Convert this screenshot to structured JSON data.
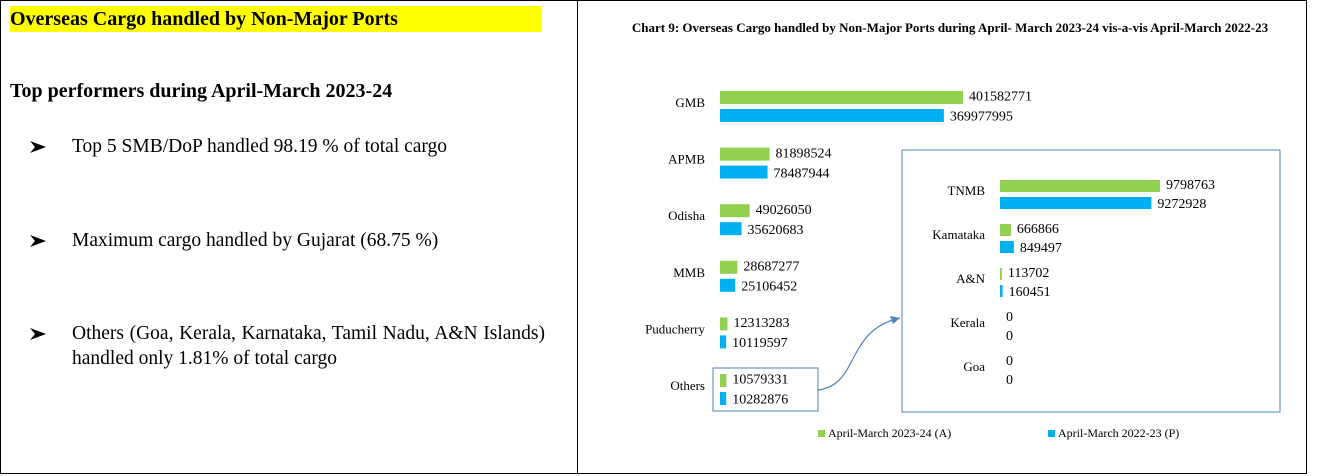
{
  "document": {
    "heading": "Overseas Cargo handled by Non-Major Ports",
    "subheading": "Top performers during April-March 2023-24",
    "bullets": [
      "Top 5 SMB/DoP handled 98.19 % of total cargo",
      "Maximum cargo handled by Gujarat (68.75 %)",
      "Others (Goa, Kerala, Karnataka, Tamil Nadu, A&N Islands) handled only 1.81% of total cargo"
    ]
  },
  "chart_data": [
    {
      "type": "bar",
      "orientation": "horizontal",
      "title": "Chart 9: Overseas Cargo handled by Non-Major Ports during April- March 2023-24 vis-a-vis April-March 2022-23",
      "categories": [
        "GMB",
        "APMB",
        "Odisha",
        "MMB",
        "Puducherry",
        "Others"
      ],
      "series": [
        {
          "name": "April-March 2023-24 (A)",
          "color": "#92d050",
          "values": [
            401582771,
            81898524,
            49026050,
            28687277,
            12313283,
            10579331
          ]
        },
        {
          "name": "April-March 2022-23 (P)",
          "color": "#00b0f0",
          "values": [
            369977995,
            78487944,
            35620683,
            25106452,
            10119597,
            10282876
          ]
        }
      ],
      "legend": "bottom"
    },
    {
      "type": "bar",
      "orientation": "horizontal",
      "categories": [
        "TNMB",
        "Kamataka",
        "A&N",
        "Kerala",
        "Goa"
      ],
      "series": [
        {
          "color": "#92d050",
          "values": [
            9798763,
            666866,
            113702,
            0,
            0
          ]
        },
        {
          "color": "#00b0f0",
          "values": [
            9272928,
            849497,
            160451,
            0,
            0
          ]
        }
      ]
    }
  ]
}
